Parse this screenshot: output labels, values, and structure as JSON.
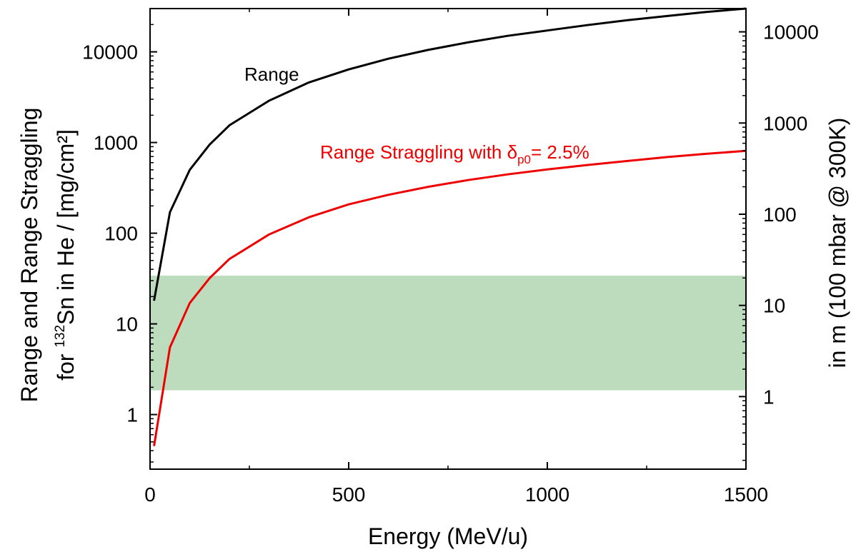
{
  "chart_data": {
    "type": "line",
    "xlabel": "Energy (MeV/u)",
    "ylabel_line1": "Range and Range Straggling",
    "ylabel_line2_prefix": "for ",
    "ylabel_line2_sup": "132",
    "ylabel_line2_suffix": "Sn in He / [mg/cm²]",
    "y2label": "in m (100 mbar @ 300K)",
    "xlim": [
      0,
      1500
    ],
    "ylim": [
      0.25,
      30000
    ],
    "y2lim": [
      0.16,
      18000
    ],
    "yscale": "log",
    "y2scale": "log",
    "x_ticks": [
      0,
      500,
      1000,
      1500
    ],
    "x_tick_labels": [
      "0",
      "500",
      "1000",
      "1500"
    ],
    "y_ticks": [
      1,
      10,
      100,
      1000,
      10000
    ],
    "y_tick_labels": [
      "1",
      "10",
      "100",
      "1000",
      "10000"
    ],
    "y2_ticks": [
      1,
      10,
      100,
      1000,
      10000
    ],
    "y2_tick_labels": [
      "1",
      "10",
      "100",
      "1000",
      "10000"
    ],
    "shaded_band": {
      "y_from": 1.85,
      "y_to": 34,
      "color": "#bddcbd"
    },
    "series": [
      {
        "name": "Range",
        "color": "#000000",
        "x": [
          10,
          50,
          100,
          150,
          200,
          300,
          400,
          500,
          600,
          700,
          800,
          900,
          1000,
          1100,
          1200,
          1300,
          1400,
          1500
        ],
        "y": [
          18,
          170,
          500,
          950,
          1550,
          2900,
          4600,
          6400,
          8400,
          10500,
          12700,
          15000,
          17200,
          19700,
          22300,
          24800,
          27500,
          30000
        ]
      },
      {
        "name_main": "Range Straggling with ",
        "name_delta": "δ",
        "name_sub": "p0",
        "name_tail": "= 2.5%",
        "color": "#ee0000",
        "x": [
          10,
          50,
          100,
          150,
          200,
          300,
          400,
          500,
          600,
          700,
          800,
          900,
          1000,
          1100,
          1200,
          1300,
          1400,
          1500
        ],
        "y": [
          0.45,
          5.5,
          17,
          32,
          52,
          97,
          150,
          208,
          265,
          325,
          385,
          445,
          505,
          565,
          625,
          690,
          750,
          810
        ]
      }
    ]
  }
}
